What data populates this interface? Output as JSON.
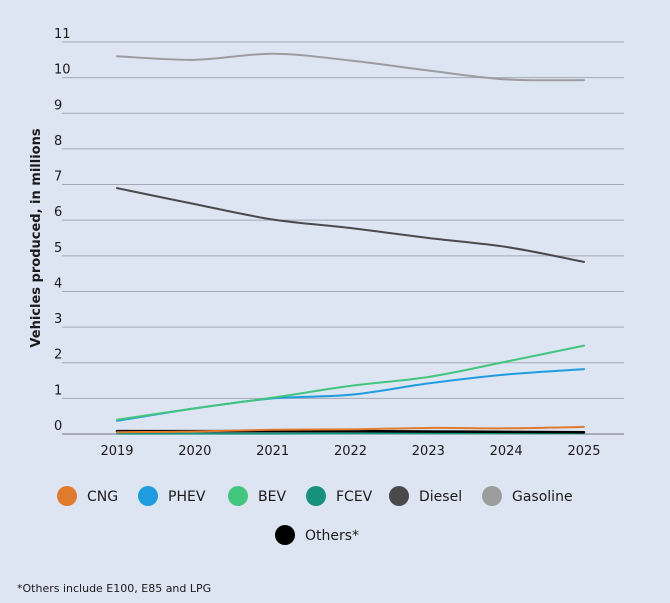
{
  "chart_data": {
    "type": "line",
    "x": [
      2019,
      2020,
      2021,
      2022,
      2023,
      2024,
      2025
    ],
    "ylabel": "Vehicles produced, in millions",
    "ylim": [
      0,
      11
    ],
    "yticks": [
      0,
      1,
      2,
      3,
      4,
      5,
      6,
      7,
      8,
      9,
      10,
      11
    ],
    "grid": true,
    "legend_position": "bottom",
    "series": [
      {
        "name": "CNG",
        "color": "#e07b2e",
        "values": [
          0.05,
          0.07,
          0.12,
          0.13,
          0.17,
          0.16,
          0.2
        ]
      },
      {
        "name": "PHEV",
        "color": "#1f9be0",
        "values": [
          0.37,
          0.72,
          1.0,
          1.1,
          1.42,
          1.67,
          1.82
        ]
      },
      {
        "name": "BEV",
        "color": "#42c57d",
        "values": [
          0.4,
          0.72,
          1.02,
          1.35,
          1.6,
          2.03,
          2.48
        ]
      },
      {
        "name": "FCEV",
        "color": "#17917b",
        "values": [
          0.01,
          0.01,
          0.01,
          0.02,
          0.02,
          0.02,
          0.02
        ]
      },
      {
        "name": "Diesel",
        "color": "#4a4a4c",
        "values": [
          6.9,
          6.45,
          6.02,
          5.78,
          5.5,
          5.25,
          4.83
        ]
      },
      {
        "name": "Gasoline",
        "color": "#9c9c9e",
        "values": [
          10.6,
          10.5,
          10.67,
          10.48,
          10.2,
          9.95,
          9.93
        ]
      },
      {
        "name": "Others*",
        "color": "#000000",
        "values": [
          0.08,
          0.08,
          0.08,
          0.08,
          0.07,
          0.06,
          0.05
        ]
      }
    ]
  },
  "footnote": "*Others include E100, E85 and LPG"
}
